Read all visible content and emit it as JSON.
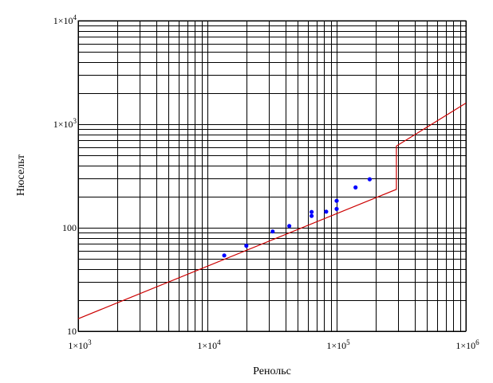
{
  "chart_data": {
    "type": "scatter",
    "xlabel": "Ренольс",
    "ylabel": "Нюсельт",
    "xscale": "log",
    "yscale": "log",
    "xlim": [
      1000,
      1000000
    ],
    "ylim": [
      10,
      10000
    ],
    "grid": true,
    "x_tick_labels": [
      {
        "value": 1000,
        "base": "1×10",
        "exp": "3"
      },
      {
        "value": 10000,
        "base": "1×10",
        "exp": "4"
      },
      {
        "value": 100000,
        "base": "1×10",
        "exp": "5"
      },
      {
        "value": 1000000,
        "base": "1×10",
        "exp": "6"
      }
    ],
    "y_tick_labels": [
      {
        "value": 10,
        "base": "10",
        "exp": ""
      },
      {
        "value": 100,
        "base": "100",
        "exp": ""
      },
      {
        "value": 1000,
        "base": "1×10",
        "exp": "3"
      },
      {
        "value": 10000,
        "base": "1×10",
        "exp": "4"
      }
    ],
    "series": [
      {
        "kind": "points",
        "color": "#0000ff",
        "points": [
          [
            13500,
            54
          ],
          [
            20000,
            67
          ],
          [
            32000,
            92
          ],
          [
            43000,
            104
          ],
          [
            64000,
            130
          ],
          [
            64000,
            142
          ],
          [
            83000,
            143
          ],
          [
            100000,
            152
          ],
          [
            100000,
            182
          ],
          [
            140000,
            245
          ],
          [
            180000,
            294
          ]
        ]
      },
      {
        "kind": "line",
        "color": "#cc0000",
        "points": [
          [
            1000,
            13.2
          ],
          [
            290000,
            235
          ],
          [
            290000,
            400
          ],
          [
            290000,
            615
          ],
          [
            1000000,
            1600
          ]
        ]
      }
    ]
  }
}
